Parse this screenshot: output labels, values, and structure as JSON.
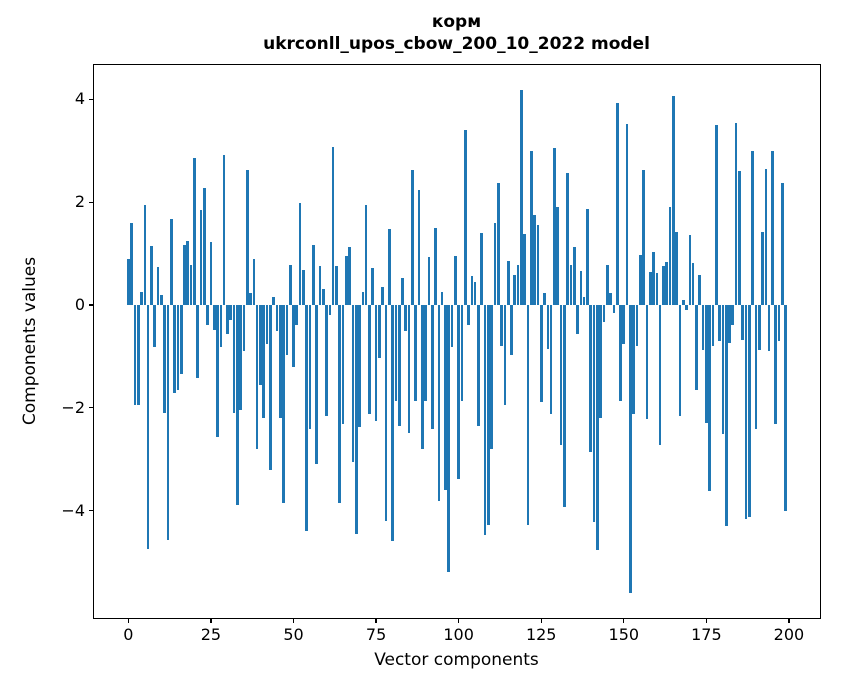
{
  "chart_data": {
    "type": "bar",
    "title": "корм",
    "subtitle": "ukrconll_upos_cbow_200_10_2022 model",
    "xlabel": "Vector components",
    "ylabel": "Components values",
    "legend": "none",
    "grid": false,
    "bar_color": "#1f77b4",
    "bar_width_data_units": 0.8,
    "x_ticks": [
      0,
      25,
      50,
      75,
      100,
      125,
      150,
      175,
      200
    ],
    "y_ticks": [
      -4,
      -2,
      0,
      2,
      4
    ],
    "xlim": [
      -10.4,
      209.4
    ],
    "ylim": [
      -6.09,
      4.67
    ],
    "x_description": "vector component index 0..199",
    "values": [
      0.9,
      1.59,
      -1.94,
      -1.94,
      0.26,
      1.95,
      -4.74,
      1.15,
      -0.81,
      0.73,
      0.2,
      -2.11,
      -4.58,
      1.68,
      -1.71,
      -1.65,
      -1.34,
      1.17,
      1.25,
      0.77,
      2.87,
      -1.43,
      1.84,
      2.27,
      -0.38,
      1.23,
      -0.49,
      -2.57,
      -0.82,
      2.92,
      -0.56,
      -0.3,
      -2.1,
      -3.9,
      -2.05,
      -0.9,
      2.62,
      0.23,
      0.9,
      -2.8,
      -1.55,
      -2.19,
      -0.76,
      -3.21,
      0.15,
      -0.5,
      -2.2,
      -3.85,
      -0.98,
      0.78,
      -1.2,
      -0.38,
      1.99,
      0.68,
      -4.39,
      -2.41,
      1.17,
      -3.1,
      0.76,
      0.32,
      -2.16,
      -0.2,
      3.08,
      0.76,
      -3.85,
      -2.32,
      0.95,
      1.12,
      -3.05,
      -4.46,
      -2.37,
      0.26,
      1.94,
      -2.13,
      0.72,
      -2.25,
      -1.04,
      0.36,
      -4.2,
      1.47,
      -4.59,
      -1.87,
      -2.35,
      0.52,
      -0.5,
      -2.5,
      2.62,
      -1.87,
      2.24,
      -2.8,
      -1.87,
      0.93,
      -2.41,
      1.5,
      -3.82,
      0.26,
      -3.6,
      -5.2,
      -0.82,
      0.95,
      -3.39,
      -1.87,
      3.41,
      -0.38,
      0.57,
      0.45,
      -2.35,
      1.41,
      -4.48,
      -4.29,
      -2.8,
      1.59,
      2.38,
      -0.79,
      -1.95,
      0.85,
      -0.98,
      0.59,
      0.77,
      4.18,
      1.38,
      -4.29,
      3.0,
      1.76,
      1.55,
      -1.89,
      0.23,
      -0.85,
      -2.13,
      3.05,
      1.9,
      -2.73,
      -3.93,
      2.57,
      0.77,
      1.12,
      -0.57,
      0.67,
      0.15,
      1.87,
      -2.86,
      -4.23,
      -4.77,
      -2.2,
      -0.34,
      0.78,
      0.23,
      -0.15,
      3.94,
      -1.87,
      -0.75,
      3.52,
      -5.6,
      -2.13,
      -0.79,
      0.97,
      2.62,
      -2.22,
      0.64,
      1.04,
      0.62,
      -2.73,
      0.76,
      0.83,
      1.9,
      4.07,
      1.42,
      -2.16,
      0.1,
      -0.1,
      1.36,
      0.82,
      -1.66,
      0.59,
      -0.87,
      -2.3,
      -3.62,
      -0.79,
      3.5,
      -0.7,
      -2.51,
      -4.3,
      -0.73,
      -0.38,
      3.55,
      2.6,
      -0.69,
      -4.17,
      -4.13,
      2.99,
      -2.41,
      -0.87,
      1.42,
      2.65,
      -0.89,
      3.0,
      -2.32,
      -0.7,
      2.38,
      -4.01
    ]
  }
}
